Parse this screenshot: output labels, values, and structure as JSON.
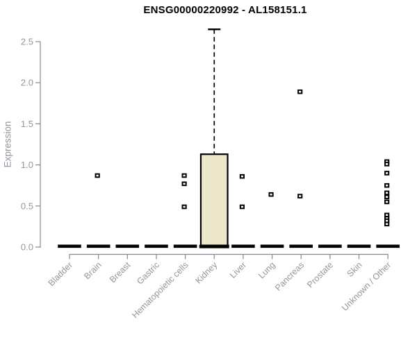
{
  "window": {
    "background": "#ffffff"
  },
  "chart_data": {
    "type": "boxplot",
    "title": "ENSG00000220992 - AL158151.1",
    "ylabel": "Expression",
    "xlabel": "",
    "ylim": [
      0,
      2.65
    ],
    "yticks": [
      0,
      0.5,
      1,
      1.5,
      2,
      2.5
    ],
    "grid": false,
    "legend": null,
    "categories": [
      "Bladder",
      "Brain",
      "Breast",
      "Gastric",
      "Hematopoietic cells",
      "Kidney",
      "Liver",
      "Lung",
      "Pancreas",
      "Prostate",
      "Skin",
      "Unknown / Other"
    ],
    "boxes": [
      {
        "category": "Kidney",
        "q1": 0.02,
        "median": 0.02,
        "q3": 1.13,
        "whisker_low": 0.0,
        "whisker_high": 2.65
      }
    ],
    "flat_medians": {
      "value": 0.01,
      "categories": [
        "Bladder",
        "Brain",
        "Breast",
        "Gastric",
        "Hematopoietic cells",
        "Liver",
        "Lung",
        "Pancreas",
        "Prostate",
        "Skin",
        "Unknown / Other"
      ]
    },
    "outliers": [
      {
        "category": "Brain",
        "values": [
          0.87
        ]
      },
      {
        "category": "Hematopoietic cells",
        "values": [
          0.87,
          0.77,
          0.49
        ]
      },
      {
        "category": "Liver",
        "values": [
          0.86,
          0.49
        ]
      },
      {
        "category": "Lung",
        "values": [
          0.64
        ]
      },
      {
        "category": "Pancreas",
        "values": [
          1.89,
          0.62
        ]
      },
      {
        "category": "Unknown / Other",
        "values": [
          1.04,
          1.01,
          0.9,
          0.75,
          0.66,
          0.61,
          0.55,
          0.39,
          0.35,
          0.32,
          0.28
        ]
      }
    ],
    "colors": {
      "box_fill": "#ece7cb",
      "box_border": "#000000",
      "axis_line": "#888888",
      "axis_text": "#92979d",
      "title_text": "#000000",
      "outlier": "#000000"
    }
  }
}
